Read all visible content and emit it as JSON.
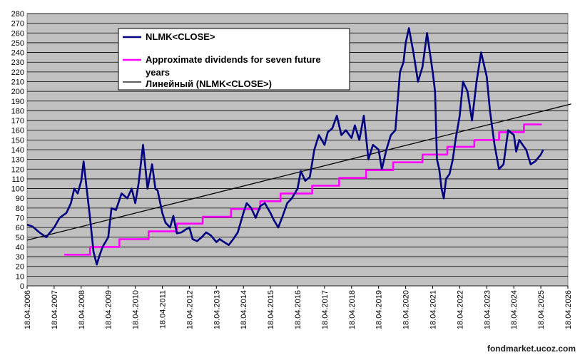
{
  "chart_data": {
    "type": "line",
    "title": "",
    "xlabel": "",
    "ylabel": "",
    "ylim": [
      0,
      280
    ],
    "yticks": [
      0,
      10,
      20,
      30,
      40,
      50,
      60,
      70,
      80,
      90,
      100,
      110,
      120,
      130,
      140,
      150,
      160,
      170,
      180,
      190,
      200,
      210,
      220,
      230,
      240,
      250,
      260,
      270,
      280
    ],
    "x_tick_labels": [
      "18.04.2006",
      "18.04.2007",
      "18.04.2008",
      "18.04.2009",
      "18.04.2010",
      "18.04.2011",
      "18.04.2012",
      "18.04.2013",
      "18.04.2014",
      "18.04.2015",
      "18.04.2016",
      "18.04.2017",
      "18.04.2018",
      "18.04.2019",
      "18.04.2020",
      "18.04.2021",
      "18.04.2022",
      "18.04.2023",
      "18.04.2024",
      "18.04.2025",
      "18.04.2026"
    ],
    "grid": true,
    "legend_position": "top-center",
    "colors": {
      "plot_background": "#c0c0c0",
      "close": "#000080",
      "dividends": "#ff00ff",
      "trend": "#000000"
    },
    "series": [
      {
        "name": "NLMK<CLOSE>",
        "x": [
          "2006-04-18",
          "2006-07-01",
          "2006-10-01",
          "2007-01-01",
          "2007-04-18",
          "2007-07-01",
          "2007-10-01",
          "2007-12-01",
          "2008-01-15",
          "2008-03-01",
          "2008-04-18",
          "2008-05-20",
          "2008-07-01",
          "2008-08-15",
          "2008-10-01",
          "2008-11-15",
          "2008-12-15",
          "2009-02-01",
          "2009-04-18",
          "2009-06-01",
          "2009-08-01",
          "2009-10-15",
          "2010-01-01",
          "2010-03-01",
          "2010-04-18",
          "2010-06-01",
          "2010-08-01",
          "2010-10-01",
          "2010-12-01",
          "2011-01-15",
          "2011-02-15",
          "2011-04-18",
          "2011-06-01",
          "2011-08-01",
          "2011-09-15",
          "2011-11-01",
          "2012-01-01",
          "2012-03-01",
          "2012-04-18",
          "2012-06-01",
          "2012-08-01",
          "2012-10-01",
          "2012-12-01",
          "2013-02-01",
          "2013-04-18",
          "2013-06-01",
          "2013-08-01",
          "2013-10-01",
          "2013-12-01",
          "2014-02-01",
          "2014-04-18",
          "2014-06-01",
          "2014-08-01",
          "2014-10-01",
          "2014-12-01",
          "2015-02-01",
          "2015-04-18",
          "2015-06-01",
          "2015-08-01",
          "2015-10-01",
          "2015-12-01",
          "2016-02-01",
          "2016-04-18",
          "2016-06-01",
          "2016-08-01",
          "2016-10-01",
          "2016-12-01",
          "2017-02-01",
          "2017-04-18",
          "2017-06-01",
          "2017-08-01",
          "2017-10-01",
          "2017-12-01",
          "2018-02-01",
          "2018-04-18",
          "2018-06-01",
          "2018-08-01",
          "2018-10-01",
          "2018-12-01",
          "2019-02-01",
          "2019-04-18",
          "2019-06-01",
          "2019-08-01",
          "2019-10-01",
          "2019-12-01",
          "2020-02-01",
          "2020-03-20",
          "2020-04-18",
          "2020-06-01",
          "2020-08-01",
          "2020-10-01",
          "2020-12-01",
          "2021-02-01",
          "2021-04-18",
          "2021-05-20",
          "2021-06-15",
          "2021-07-15",
          "2021-08-15",
          "2021-09-15",
          "2021-10-15",
          "2021-12-01",
          "2022-01-15",
          "2022-02-20",
          "2022-04-18",
          "2022-06-01",
          "2022-08-01",
          "2022-10-01",
          "2022-12-01",
          "2023-02-01",
          "2023-04-18",
          "2023-06-01",
          "2023-08-01",
          "2023-10-01",
          "2023-12-01",
          "2024-02-01",
          "2024-04-18",
          "2024-05-20",
          "2024-07-01",
          "2024-08-15",
          "2024-10-01",
          "2024-12-01",
          "2025-02-01",
          "2025-04-18",
          "2025-05-20"
        ],
        "values": [
          63,
          61,
          55,
          50,
          60,
          70,
          75,
          85,
          100,
          95,
          108,
          128,
          100,
          70,
          35,
          22,
          30,
          40,
          50,
          80,
          78,
          95,
          90,
          100,
          85,
          105,
          145,
          100,
          125,
          100,
          98,
          75,
          65,
          60,
          72,
          54,
          55,
          58,
          60,
          48,
          46,
          50,
          55,
          52,
          45,
          48,
          45,
          42,
          48,
          55,
          75,
          85,
          80,
          70,
          82,
          85,
          75,
          68,
          60,
          72,
          85,
          90,
          100,
          118,
          108,
          112,
          140,
          155,
          145,
          158,
          162,
          175,
          155,
          160,
          152,
          165,
          150,
          175,
          130,
          145,
          140,
          120,
          140,
          155,
          160,
          220,
          230,
          250,
          265,
          240,
          210,
          225,
          260,
          220,
          200,
          130,
          120,
          100,
          90,
          110,
          115,
          130,
          150,
          175,
          210,
          200,
          170,
          210,
          240,
          215,
          180,
          145,
          120,
          125,
          160,
          155,
          138,
          150,
          145,
          140,
          125,
          128,
          135,
          140
        ],
        "values_note_removed": true
      },
      {
        "name": "Approximate dividends for seven future years",
        "x": [
          "2007-09-01",
          "2008-08-15",
          "2008-08-16",
          "2009-09-15",
          "2009-09-16",
          "2010-10-15",
          "2010-10-16",
          "2011-11-01",
          "2011-11-02",
          "2012-10-15",
          "2012-10-16",
          "2013-11-01",
          "2013-11-02",
          "2014-12-01",
          "2014-12-02",
          "2015-09-01",
          "2015-09-02",
          "2016-11-01",
          "2016-11-02",
          "2017-11-01",
          "2017-11-02",
          "2018-11-01",
          "2018-11-02",
          "2019-11-01",
          "2019-11-02",
          "2020-12-01",
          "2020-12-02",
          "2021-11-01",
          "2021-11-02",
          "2022-11-01",
          "2022-11-02",
          "2023-10-01",
          "2023-10-02",
          "2024-09-01",
          "2024-09-02",
          "2025-05-01"
        ],
        "values": [
          32,
          32,
          40,
          40,
          48,
          48,
          56,
          56,
          64,
          64,
          71,
          71,
          79,
          79,
          87,
          87,
          95,
          95,
          103,
          103,
          111,
          111,
          119,
          119,
          127,
          127,
          135,
          135,
          143,
          143,
          150,
          150,
          158,
          158,
          166,
          166
        ]
      },
      {
        "name": "Линейный (NLMK<CLOSE>)",
        "x": [
          "2006-04-18",
          "2026-06-01"
        ],
        "values": [
          47,
          187
        ]
      }
    ]
  },
  "watermark": "fondmarket.ucoz.com"
}
